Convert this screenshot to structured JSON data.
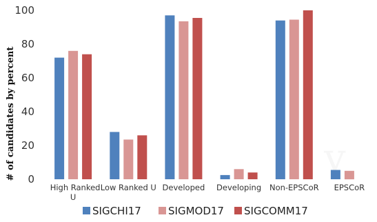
{
  "chart_data": {
    "type": "bar",
    "title": "",
    "xlabel": "",
    "ylabel": "# of candidates by percent",
    "ylim": [
      0,
      100
    ],
    "yticks": [
      0,
      20,
      40,
      60,
      80,
      100
    ],
    "grid": false,
    "legend_position": "bottom",
    "categories": [
      "High Ranked U",
      "Low Ranked U",
      "Developed",
      "Developing",
      "Non-EPSCoR",
      "EPSCoR"
    ],
    "series": [
      {
        "name": "SIGCHI17",
        "color": "#4f81bd",
        "values": [
          72,
          28,
          97,
          2.5,
          94,
          5.5
        ]
      },
      {
        "name": "SIGMOD17",
        "color": "#d99694",
        "values": [
          76,
          23.5,
          93.5,
          6,
          94.5,
          5
        ]
      },
      {
        "name": "SIGCOMM17",
        "color": "#c0504d",
        "values": [
          74,
          26,
          95.5,
          4,
          100,
          null
        ]
      }
    ]
  }
}
